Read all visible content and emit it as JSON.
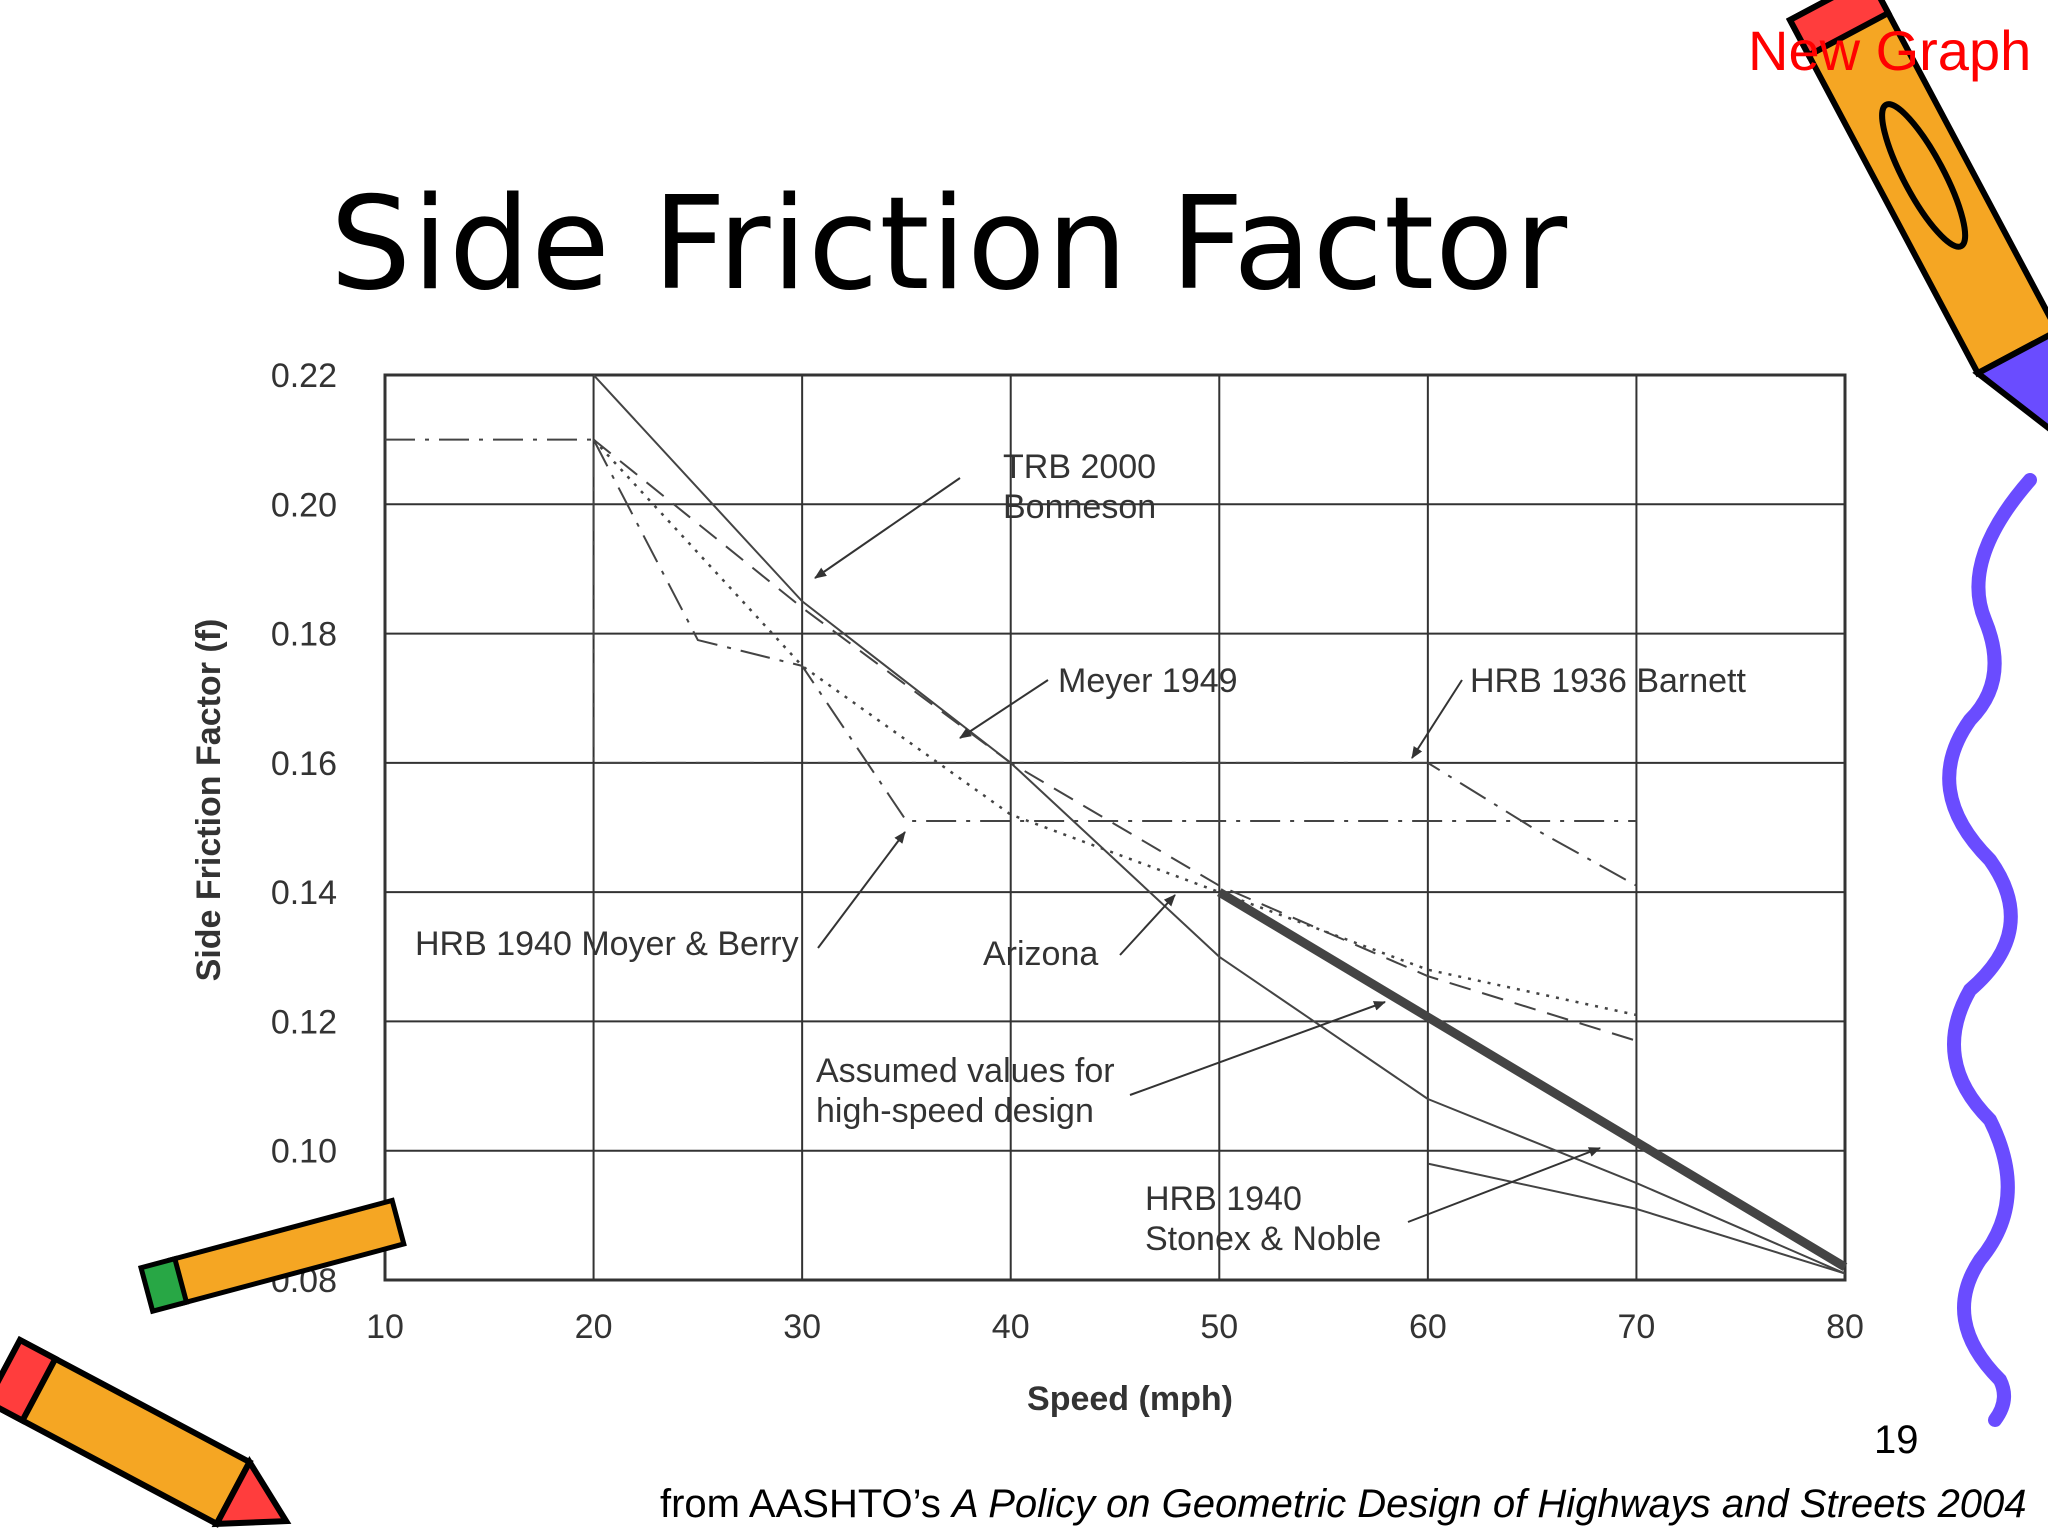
{
  "slide": {
    "title": "Side Friction Factor",
    "new_graph_link": "New Graph",
    "page_number": "19",
    "source_prefix": "from AASHTO’s ",
    "source_italic": "A Policy on Geometric Design of Highways and Streets 2004"
  },
  "colors": {
    "link": "#ff0000",
    "pencil_body": "#f5a623",
    "pencil_tip": "#6a4cff",
    "squiggle": "#6a4cff"
  },
  "icons": [
    "pencil-icon",
    "crossed-pencils-icon",
    "squiggle-line-icon"
  ],
  "chart_data": {
    "type": "line",
    "xlabel": "Speed (mph)",
    "ylabel": "Side Friction Factor (f)",
    "xlim": [
      10,
      80
    ],
    "ylim": [
      0.08,
      0.22
    ],
    "xticks": [
      "10",
      "20",
      "30",
      "40",
      "50",
      "60",
      "70",
      "80"
    ],
    "yticks": [
      "0.08",
      "0.10",
      "0.12",
      "0.14",
      "0.16",
      "0.18",
      "0.20",
      "0.22"
    ],
    "grid": true,
    "series": [
      {
        "name": "TRB 2000 Bonneson",
        "style": "solid-thin",
        "x": [
          20,
          30,
          40,
          50,
          60,
          70,
          80
        ],
        "y": [
          0.22,
          0.185,
          0.16,
          0.13,
          0.108,
          0.095,
          0.081
        ]
      },
      {
        "name": "Meyer 1949",
        "style": "dashed",
        "x": [
          20,
          30,
          40,
          50,
          60,
          70
        ],
        "y": [
          0.21,
          0.184,
          0.16,
          0.141,
          0.127,
          0.117
        ]
      },
      {
        "name": "HRB 1936 Barnett",
        "style": "dash-dot",
        "x": [
          10,
          20,
          20,
          60,
          65,
          70
        ],
        "y": [
          0.21,
          0.21,
          0.16,
          0.16,
          0.15,
          0.141
        ]
      },
      {
        "name": "HRB 1940 Moyer & Berry",
        "style": "dash-dot",
        "x": [
          20,
          25,
          30,
          35,
          70
        ],
        "y": [
          0.21,
          0.179,
          0.175,
          0.151,
          0.151
        ]
      },
      {
        "name": "Arizona",
        "style": "dotted",
        "x": [
          20,
          30,
          40,
          50,
          60,
          70
        ],
        "y": [
          0.21,
          0.175,
          0.152,
          0.14,
          0.128,
          0.121
        ]
      },
      {
        "name": "Assumed values for high-speed design",
        "style": "bold",
        "x": [
          50,
          80
        ],
        "y": [
          0.14,
          0.082
        ]
      },
      {
        "name": "HRB 1940 Stonex & Noble",
        "style": "solid-thin",
        "x": [
          60,
          70,
          80
        ],
        "y": [
          0.098,
          0.091,
          0.081
        ]
      }
    ],
    "annotations": [
      {
        "text": "TRB 2000",
        "text2": "Bonneson",
        "x": 32,
        "y": 0.19
      },
      {
        "text": "Meyer 1949",
        "x": 37.5,
        "y": 0.165
      },
      {
        "text": "HRB 1936 Barnett",
        "x": 60,
        "y": 0.16
      },
      {
        "text": "HRB 1940 Moyer & Berry",
        "x": 35,
        "y": 0.151
      },
      {
        "text": "Arizona",
        "x": 48,
        "y": 0.14
      },
      {
        "text": "Assumed values for",
        "text2": "high-speed design",
        "x": 58,
        "y": 0.123
      },
      {
        "text": "HRB 1940",
        "text2": "Stonex & Noble",
        "x": 70,
        "y": 0.102
      }
    ]
  }
}
